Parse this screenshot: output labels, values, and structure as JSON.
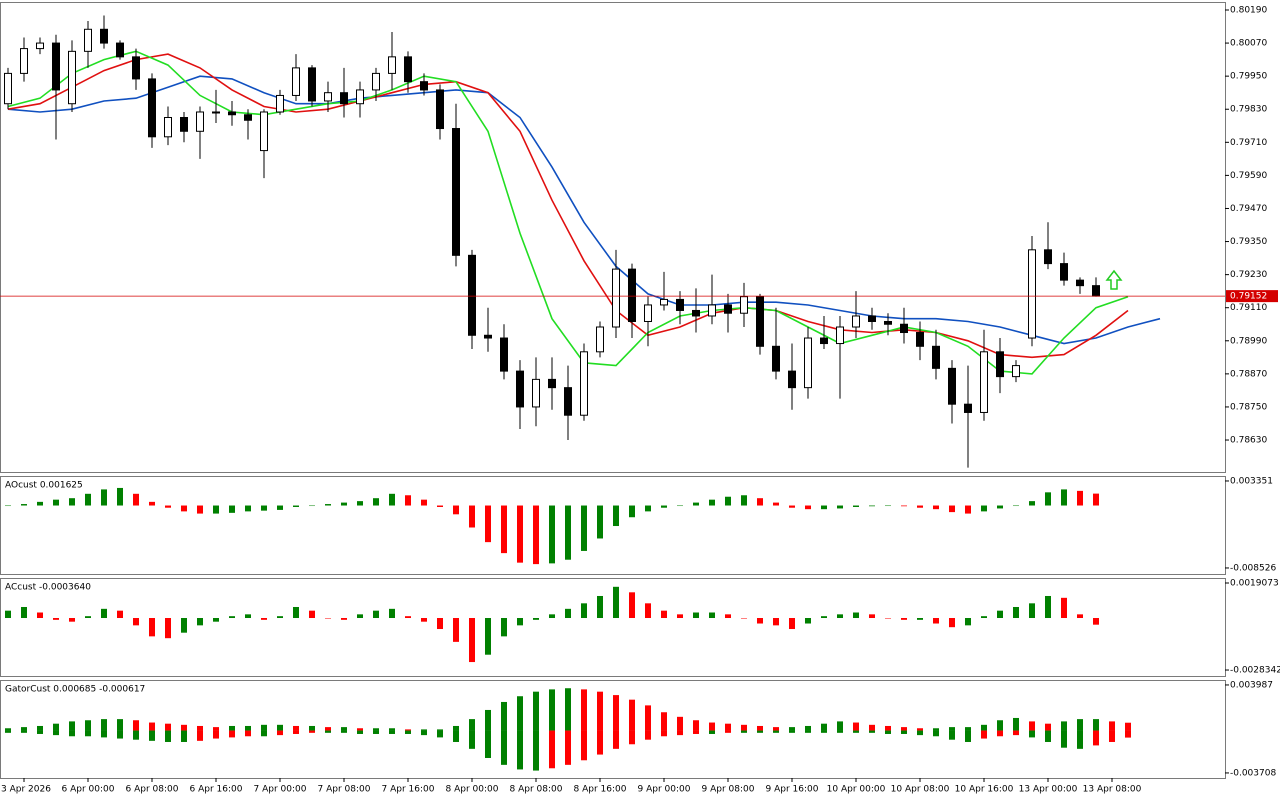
{
  "chart_data": [
    {
      "type": "candlestick",
      "open": [
        0.7985,
        0.7996,
        0.8005,
        0.8007,
        0.7985,
        0.8004,
        0.8012,
        0.8007,
        0.8002,
        0.7994,
        0.7973,
        0.798,
        0.7975,
        0.7982,
        0.7982,
        0.7981,
        0.7968,
        0.7982,
        0.7988,
        0.7998,
        0.7986,
        0.7989,
        0.7985,
        0.799,
        0.7996,
        0.8002,
        0.7993,
        0.799,
        0.7976,
        0.793,
        0.7901,
        0.79,
        0.7888,
        0.7875,
        0.7885,
        0.7882,
        0.7872,
        0.7895,
        0.7904,
        0.7925,
        0.7906,
        0.7912,
        0.7914,
        0.791,
        0.7908,
        0.7912,
        0.7909,
        0.7915,
        0.7897,
        0.7888,
        0.7882,
        0.79,
        0.7898,
        0.7904,
        0.7908,
        0.7906,
        0.7905,
        0.7902,
        0.7897,
        0.7889,
        0.7876,
        0.7873,
        0.7895,
        0.7886,
        0.79,
        0.7932,
        0.7927,
        0.7921,
        0.7919
      ],
      "high": [
        0.7998,
        0.8009,
        0.8009,
        0.801,
        0.8008,
        0.8015,
        0.8017,
        0.8008,
        0.8005,
        0.7996,
        0.7984,
        0.7982,
        0.7984,
        0.799,
        0.7986,
        0.7983,
        0.7983,
        0.799,
        0.8003,
        0.7999,
        0.7993,
        0.7998,
        0.7993,
        0.7998,
        0.8011,
        0.8004,
        0.7996,
        0.7992,
        0.7985,
        0.7932,
        0.7911,
        0.7905,
        0.7892,
        0.7893,
        0.7893,
        0.789,
        0.7898,
        0.7906,
        0.7932,
        0.7927,
        0.7915,
        0.7924,
        0.7917,
        0.7918,
        0.7923,
        0.7916,
        0.792,
        0.7916,
        0.7911,
        0.7898,
        0.7904,
        0.7908,
        0.7908,
        0.7917,
        0.7911,
        0.7909,
        0.7911,
        0.7906,
        0.7903,
        0.7892,
        0.789,
        0.7903,
        0.79,
        0.7892,
        0.7937,
        0.7942,
        0.7931,
        0.7922,
        0.7922
      ],
      "low": [
        0.7983,
        0.7993,
        0.8003,
        0.7972,
        0.7982,
        0.7998,
        0.8005,
        0.8001,
        0.799,
        0.7969,
        0.797,
        0.7971,
        0.7965,
        0.7978,
        0.7977,
        0.7972,
        0.7958,
        0.7981,
        0.7986,
        0.7984,
        0.7982,
        0.798,
        0.798,
        0.7986,
        0.799,
        0.7989,
        0.7988,
        0.7972,
        0.7926,
        0.7896,
        0.7895,
        0.7885,
        0.7867,
        0.7868,
        0.7874,
        0.7863,
        0.787,
        0.7893,
        0.79,
        0.79,
        0.7897,
        0.791,
        0.7905,
        0.7902,
        0.7905,
        0.7902,
        0.7904,
        0.7894,
        0.7885,
        0.7874,
        0.7878,
        0.7896,
        0.7878,
        0.79,
        0.7903,
        0.7901,
        0.7898,
        0.7892,
        0.7885,
        0.7869,
        0.7853,
        0.787,
        0.788,
        0.7884,
        0.7897,
        0.7925,
        0.7919,
        0.7916,
        0.7915
      ],
      "close": [
        0.7996,
        0.8005,
        0.8007,
        0.799,
        0.8004,
        0.8012,
        0.8007,
        0.8002,
        0.7994,
        0.7973,
        0.798,
        0.7975,
        0.7982,
        0.7982,
        0.7981,
        0.7979,
        0.7982,
        0.7988,
        0.7998,
        0.7986,
        0.7989,
        0.7985,
        0.799,
        0.7996,
        0.8002,
        0.7993,
        0.799,
        0.7976,
        0.793,
        0.7901,
        0.79,
        0.7888,
        0.7875,
        0.7885,
        0.7882,
        0.7872,
        0.7895,
        0.7904,
        0.7925,
        0.7906,
        0.7912,
        0.7914,
        0.791,
        0.7908,
        0.7912,
        0.7909,
        0.7915,
        0.7897,
        0.7888,
        0.7882,
        0.79,
        0.7898,
        0.7904,
        0.7908,
        0.7906,
        0.7905,
        0.7902,
        0.7897,
        0.7889,
        0.7876,
        0.7873,
        0.7895,
        0.7886,
        0.789,
        0.7932,
        0.7927,
        0.7921,
        0.7919,
        0.79152
      ],
      "up_color": "#ffffff",
      "down_color": "#000000",
      "lines": [
        {
          "color": "#1050c0",
          "x": [
            0,
            2,
            4,
            6,
            8,
            10,
            12,
            14,
            16,
            18,
            20,
            22,
            24,
            26,
            28,
            30,
            32,
            34,
            36,
            38,
            40,
            42,
            44,
            46,
            48,
            50,
            52,
            54,
            56,
            58,
            60,
            62,
            64,
            66,
            68,
            70,
            72
          ],
          "values": [
            0.7983,
            0.7982,
            0.7983,
            0.7986,
            0.7987,
            0.7991,
            0.7995,
            0.7994,
            0.7989,
            0.7985,
            0.7985,
            0.7987,
            0.7988,
            0.7989,
            0.799,
            0.7989,
            0.798,
            0.7962,
            0.7942,
            0.7926,
            0.7916,
            0.7912,
            0.7912,
            0.7913,
            0.7913,
            0.7912,
            0.791,
            0.7908,
            0.7907,
            0.7907,
            0.7906,
            0.7904,
            0.7901,
            0.7898,
            0.79,
            0.7904,
            0.7907
          ]
        },
        {
          "color": "#e01010",
          "x": [
            0,
            2,
            4,
            6,
            8,
            10,
            12,
            14,
            16,
            18,
            20,
            22,
            24,
            26,
            28,
            30,
            32,
            34,
            36,
            38,
            40,
            42,
            44,
            46,
            48,
            50,
            52,
            54,
            56,
            58,
            60,
            62,
            64,
            66,
            68,
            70,
            72
          ],
          "values": [
            0.7983,
            0.7985,
            0.7991,
            0.7997,
            0.8001,
            0.8003,
            0.7998,
            0.799,
            0.7984,
            0.7982,
            0.7983,
            0.7986,
            0.7989,
            0.7992,
            0.7993,
            0.7989,
            0.7975,
            0.795,
            0.7928,
            0.791,
            0.7901,
            0.7904,
            0.7909,
            0.7911,
            0.791,
            0.7906,
            0.7903,
            0.7902,
            0.7903,
            0.7902,
            0.7899,
            0.7894,
            0.7893,
            0.7894,
            0.7901,
            0.791,
            null
          ]
        },
        {
          "color": "#22dd22",
          "x": [
            0,
            2,
            4,
            6,
            8,
            10,
            12,
            14,
            16,
            18,
            20,
            22,
            24,
            26,
            28,
            30,
            32,
            34,
            36,
            38,
            40,
            42,
            44,
            46,
            48,
            50,
            52,
            54,
            56,
            58,
            60,
            62,
            64,
            66,
            68,
            70,
            72
          ],
          "values": [
            0.7984,
            0.7987,
            0.7996,
            0.8001,
            0.8004,
            0.7999,
            0.7988,
            0.7982,
            0.7981,
            0.7983,
            0.7985,
            0.7986,
            0.799,
            0.7995,
            0.7993,
            0.7975,
            0.7938,
            0.7907,
            0.7891,
            0.789,
            0.7902,
            0.7908,
            0.791,
            0.7911,
            0.791,
            0.7904,
            0.7898,
            0.7901,
            0.7904,
            0.7902,
            0.7897,
            0.7888,
            0.7887,
            0.79,
            0.7911,
            0.7915,
            null
          ]
        }
      ],
      "current_price": 0.79152,
      "current_price_color": "#d40000",
      "xlim": [
        -0.5,
        76
      ],
      "ylim": [
        0.78514,
        0.80219
      ],
      "yticks": [
        {
          "value": 0.8019,
          "label": "0.80190"
        },
        {
          "value": 0.8007,
          "label": "0.80070"
        },
        {
          "value": 0.7995,
          "label": "0.79950"
        },
        {
          "value": 0.7983,
          "label": "0.79830"
        },
        {
          "value": 0.7971,
          "label": "0.79710"
        },
        {
          "value": 0.7959,
          "label": "0.79590"
        },
        {
          "value": 0.7947,
          "label": "0.79470"
        },
        {
          "value": 0.7935,
          "label": "0.79350"
        },
        {
          "value": 0.7923,
          "label": "0.79230"
        },
        {
          "value": 0.7911,
          "label": "0.79110"
        },
        {
          "value": 0.7899,
          "label": "0.78990"
        },
        {
          "value": 0.7887,
          "label": "0.78870"
        },
        {
          "value": 0.7875,
          "label": "0.78750"
        },
        {
          "value": 0.7863,
          "label": "0.78630"
        }
      ],
      "xticks": [
        {
          "value": 1,
          "label": "3 Apr 2026"
        },
        {
          "value": 5,
          "label": "6 Apr 00:00"
        },
        {
          "value": 9,
          "label": "6 Apr 08:00"
        },
        {
          "value": 13,
          "label": "6 Apr 16:00"
        },
        {
          "value": 17,
          "label": "7 Apr 00:00"
        },
        {
          "value": 21,
          "label": "7 Apr 08:00"
        },
        {
          "value": 25,
          "label": "7 Apr 16:00"
        },
        {
          "value": 29,
          "label": "8 Apr 00:00"
        },
        {
          "value": 33,
          "label": "8 Apr 08:00"
        },
        {
          "value": 37,
          "label": "8 Apr 16:00"
        },
        {
          "value": 41,
          "label": "9 Apr 00:00"
        },
        {
          "value": 45,
          "label": "9 Apr 08:00"
        },
        {
          "value": 49,
          "label": "9 Apr 16:00"
        },
        {
          "value": 53,
          "label": "10 Apr 00:00"
        },
        {
          "value": 57,
          "label": "10 Apr 08:00"
        },
        {
          "value": 61,
          "label": "10 Apr 16:00"
        },
        {
          "value": 65,
          "label": "13 Apr 00:00"
        },
        {
          "value": 69,
          "label": "13 Apr 08:00"
        }
      ]
    },
    {
      "type": "bar",
      "title": "AOcust 0.001625",
      "values": [
        0.0,
        0.0002,
        0.0005,
        0.0008,
        0.001,
        0.0016,
        0.0022,
        0.0024,
        0.0016,
        0.0005,
        -0.0003,
        -0.0008,
        -0.0011,
        -0.0011,
        -0.001,
        -0.0008,
        -0.0007,
        -0.0006,
        -0.0002,
        0.0,
        0.0002,
        0.0004,
        0.0006,
        0.001,
        0.0016,
        0.0014,
        0.0008,
        -0.0002,
        -0.0012,
        -0.003,
        -0.005,
        -0.0065,
        -0.0078,
        -0.008,
        -0.0079,
        -0.0074,
        -0.0062,
        -0.0045,
        -0.0028,
        -0.0016,
        -0.0008,
        -0.0003,
        0.0,
        0.0004,
        0.0008,
        0.0012,
        0.0014,
        0.001,
        0.0004,
        -0.0003,
        -0.0005,
        -0.0005,
        -0.0004,
        -0.0002,
        -0.0001,
        0.0,
        -0.0001,
        -0.0003,
        -0.0005,
        -0.0009,
        -0.0011,
        -0.0008,
        -0.0004,
        0.0,
        0.0006,
        0.0018,
        0.0022,
        0.002,
        0.001625
      ],
      "up_color": "#008000",
      "down_color": "#ff0000",
      "ylim": [
        -0.00935,
        0.00403
      ],
      "yticks": [
        0.003351,
        -0.008526
      ]
    },
    {
      "type": "bar",
      "title": "ACcust -0.0003640",
      "values": [
        0.0004,
        0.0006,
        0.0003,
        -0.0001,
        -0.0002,
        0.0001,
        0.0005,
        0.0004,
        -0.0004,
        -0.001,
        -0.0011,
        -0.0008,
        -0.0004,
        -0.0002,
        0.0001,
        0.0002,
        -0.0001,
        0.0001,
        0.0006,
        0.0004,
        0.0,
        -0.0001,
        0.0002,
        0.0004,
        0.0005,
        0.0001,
        -0.0002,
        -0.0006,
        -0.0013,
        -0.0024,
        -0.002,
        -0.001,
        -0.0004,
        -0.0001,
        0.0002,
        0.0005,
        0.0008,
        0.0012,
        0.0017,
        0.0014,
        0.0008,
        0.0004,
        0.0002,
        0.0003,
        0.0003,
        0.0002,
        0.0,
        -0.0003,
        -0.0004,
        -0.0006,
        -0.0003,
        0.0001,
        0.0002,
        0.0003,
        0.0002,
        0.0,
        -0.0001,
        -0.0001,
        -0.0003,
        -0.0005,
        -0.0004,
        0.0001,
        0.0004,
        0.0006,
        0.0008,
        0.0012,
        0.0011,
        0.0002,
        -0.000364
      ],
      "up_color": "#008000",
      "down_color": "#ff0000",
      "ylim": [
        -0.00316,
        0.00218
      ],
      "yticks": [
        0.0019073,
        -0.0028342
      ]
    },
    {
      "type": "gator",
      "title": "GatorCust 0.000685 -0.000617",
      "upper": [
        0.0002,
        0.0003,
        0.0004,
        0.0006,
        0.0008,
        0.0009,
        0.001,
        0.001,
        0.0009,
        0.0007,
        0.0006,
        0.0005,
        0.0004,
        0.0003,
        0.0004,
        0.0004,
        0.0005,
        0.0005,
        0.0004,
        0.0004,
        0.0003,
        0.0003,
        0.0002,
        0.0002,
        0.0002,
        0.0001,
        0.0001,
        0.0001,
        0.0004,
        0.001,
        0.0018,
        0.0025,
        0.003,
        0.0034,
        0.0036,
        0.0037,
        0.0036,
        0.0034,
        0.0031,
        0.0027,
        0.0022,
        0.0016,
        0.0012,
        0.0009,
        0.0007,
        0.0006,
        0.0005,
        0.0004,
        0.0003,
        0.0003,
        0.0004,
        0.0006,
        0.0008,
        0.0007,
        0.0005,
        0.0004,
        0.0003,
        0.0002,
        0.0002,
        0.0003,
        0.0003,
        0.0005,
        0.0009,
        0.0011,
        0.0008,
        0.0006,
        0.0008,
        0.001,
        0.001,
        0.0008,
        0.000685
      ],
      "lower": [
        -0.0002,
        -0.0002,
        -0.0003,
        -0.0004,
        -0.0005,
        -0.0005,
        -0.0006,
        -0.0007,
        -0.0008,
        -0.0009,
        -0.001,
        -0.001,
        -0.0009,
        -0.0007,
        -0.0006,
        -0.0005,
        -0.0005,
        -0.0004,
        -0.0003,
        -0.0002,
        -0.0002,
        -0.0002,
        -0.0003,
        -0.0003,
        -0.0003,
        -0.0003,
        -0.0004,
        -0.0006,
        -0.001,
        -0.0016,
        -0.0024,
        -0.003,
        -0.0034,
        -0.0035,
        -0.0033,
        -0.003,
        -0.0026,
        -0.0021,
        -0.0016,
        -0.0012,
        -0.0008,
        -0.0005,
        -0.0004,
        -0.0003,
        -0.0003,
        -0.0002,
        -0.0002,
        -0.0002,
        -0.0002,
        -0.0002,
        -0.0002,
        -0.0002,
        -0.0002,
        -0.0002,
        -0.0002,
        -0.0003,
        -0.0003,
        -0.0004,
        -0.0005,
        -0.0008,
        -0.001,
        -0.0007,
        -0.0005,
        -0.0004,
        -0.0006,
        -0.001,
        -0.0015,
        -0.0016,
        -0.0013,
        -0.001,
        -0.000617
      ],
      "up_color": "#008000",
      "down_color": "#ff0000",
      "ylim": [
        -0.00415,
        0.00442
      ],
      "yticks": [
        0.003987,
        -0.003708
      ]
    }
  ]
}
